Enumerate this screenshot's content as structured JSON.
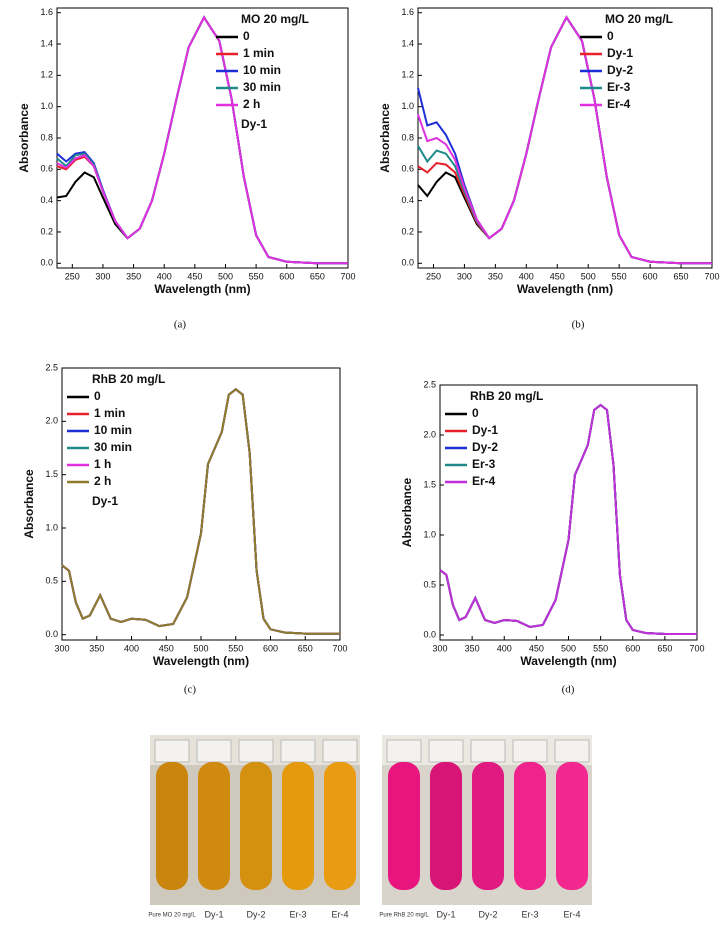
{
  "chart_data": [
    {
      "type": "line",
      "caption": "(a)",
      "xlabel": "Wavelength (nm)",
      "ylabel": "Absorbance",
      "legend": "upper right",
      "legend_title": "MO 20 mg/L",
      "annotation": "Dy-1",
      "xlim": [
        225,
        700
      ],
      "xticks": [
        250,
        300,
        350,
        400,
        450,
        500,
        550,
        600,
        650,
        700
      ],
      "ylim": [
        -0.03,
        1.63
      ],
      "yticks": [
        {
          "value": 0,
          "label": "0.0"
        },
        0.2,
        0.4,
        0.6,
        0.8,
        {
          "value": 1,
          "label": "1.0"
        },
        1.2,
        1.4,
        1.6
      ],
      "x": [
        225,
        240,
        255,
        270,
        285,
        300,
        320,
        340,
        360,
        380,
        400,
        420,
        440,
        465,
        490,
        510,
        530,
        550,
        570,
        600,
        650,
        700
      ],
      "series": [
        {
          "name": "0",
          "color": "#000000",
          "values": [
            0.42,
            0.43,
            0.52,
            0.58,
            0.55,
            0.42,
            0.25,
            0.16,
            0.22,
            0.4,
            0.7,
            1.05,
            1.38,
            1.57,
            1.42,
            1.05,
            0.55,
            0.18,
            0.04,
            0.01,
            0.0,
            0.0
          ]
        },
        {
          "name": "1 min",
          "color": "#e8202a",
          "values": [
            0.62,
            0.6,
            0.66,
            0.68,
            0.62,
            0.46,
            0.27,
            0.16,
            0.22,
            0.4,
            0.7,
            1.05,
            1.38,
            1.57,
            1.42,
            1.05,
            0.55,
            0.18,
            0.04,
            0.01,
            0.0,
            0.0
          ]
        },
        {
          "name": "10 min",
          "color": "#1f2fd8",
          "values": [
            0.7,
            0.65,
            0.7,
            0.71,
            0.64,
            0.47,
            0.27,
            0.16,
            0.22,
            0.4,
            0.7,
            1.05,
            1.38,
            1.57,
            1.42,
            1.05,
            0.55,
            0.18,
            0.04,
            0.01,
            0.0,
            0.0
          ]
        },
        {
          "name": "30 min",
          "color": "#1e8a8a",
          "values": [
            0.67,
            0.62,
            0.69,
            0.7,
            0.63,
            0.46,
            0.27,
            0.16,
            0.22,
            0.4,
            0.7,
            1.05,
            1.38,
            1.57,
            1.42,
            1.05,
            0.55,
            0.18,
            0.04,
            0.01,
            0.0,
            0.0
          ]
        },
        {
          "name": "2 h",
          "color": "#e030e0",
          "values": [
            0.64,
            0.61,
            0.67,
            0.69,
            0.62,
            0.46,
            0.27,
            0.16,
            0.22,
            0.4,
            0.7,
            1.05,
            1.38,
            1.57,
            1.42,
            1.05,
            0.55,
            0.18,
            0.04,
            0.01,
            0.0,
            0.0
          ]
        }
      ]
    },
    {
      "type": "line",
      "caption": "(b)",
      "xlabel": "Wavelength (nm)",
      "ylabel": "Absorbance",
      "legend": "upper right",
      "legend_title": "MO 20 mg/L",
      "xlim": [
        225,
        700
      ],
      "xticks": [
        250,
        300,
        350,
        400,
        450,
        500,
        550,
        600,
        650,
        700
      ],
      "ylim": [
        -0.03,
        1.63
      ],
      "yticks": [
        {
          "value": 0,
          "label": "0.0"
        },
        0.2,
        0.4,
        0.6,
        0.8,
        {
          "value": 1,
          "label": "1.0"
        },
        1.2,
        1.4,
        1.6
      ],
      "x": [
        225,
        240,
        255,
        270,
        285,
        300,
        320,
        340,
        360,
        380,
        400,
        420,
        440,
        465,
        490,
        510,
        530,
        550,
        570,
        600,
        650,
        700
      ],
      "series": [
        {
          "name": "0",
          "color": "#000000",
          "values": [
            0.5,
            0.43,
            0.52,
            0.58,
            0.55,
            0.42,
            0.25,
            0.16,
            0.22,
            0.4,
            0.7,
            1.05,
            1.38,
            1.57,
            1.42,
            1.05,
            0.55,
            0.18,
            0.04,
            0.01,
            0.0,
            0.0
          ]
        },
        {
          "name": "Dy-1",
          "color": "#e8202a",
          "values": [
            0.62,
            0.58,
            0.64,
            0.63,
            0.58,
            0.44,
            0.26,
            0.16,
            0.22,
            0.4,
            0.7,
            1.05,
            1.38,
            1.57,
            1.42,
            1.05,
            0.55,
            0.18,
            0.04,
            0.01,
            0.0,
            0.0
          ]
        },
        {
          "name": "Dy-2",
          "color": "#1f2fd8",
          "values": [
            1.12,
            0.88,
            0.9,
            0.82,
            0.7,
            0.5,
            0.28,
            0.16,
            0.22,
            0.4,
            0.7,
            1.05,
            1.38,
            1.57,
            1.42,
            1.05,
            0.55,
            0.18,
            0.04,
            0.01,
            0.0,
            0.0
          ]
        },
        {
          "name": "Er-3",
          "color": "#1e8a8a",
          "values": [
            0.75,
            0.65,
            0.72,
            0.7,
            0.62,
            0.46,
            0.27,
            0.16,
            0.22,
            0.4,
            0.7,
            1.05,
            1.38,
            1.57,
            1.42,
            1.05,
            0.55,
            0.18,
            0.04,
            0.01,
            0.0,
            0.0
          ]
        },
        {
          "name": "Er-4",
          "color": "#e030e0",
          "values": [
            0.95,
            0.78,
            0.8,
            0.76,
            0.66,
            0.48,
            0.28,
            0.16,
            0.22,
            0.4,
            0.7,
            1.05,
            1.38,
            1.57,
            1.42,
            1.05,
            0.55,
            0.18,
            0.04,
            0.01,
            0.0,
            0.0
          ]
        }
      ]
    },
    {
      "type": "line",
      "caption": "(c)",
      "xlabel": "Wavelength (nm)",
      "ylabel": "Absorbance",
      "legend": "upper left",
      "legend_title": "RhB 20 mg/L",
      "annotation": "Dy-1",
      "xlim": [
        300,
        700
      ],
      "xticks": [
        300,
        350,
        400,
        450,
        500,
        550,
        600,
        650,
        700
      ],
      "ylim": [
        -0.05,
        2.5
      ],
      "yticks": [
        {
          "value": 0,
          "label": "0.0"
        },
        0.5,
        {
          "value": 1,
          "label": "1.0"
        },
        1.5,
        {
          "value": 2,
          "label": "2.0"
        },
        2.5
      ],
      "x": [
        300,
        310,
        320,
        330,
        340,
        355,
        370,
        385,
        400,
        420,
        440,
        460,
        480,
        500,
        510,
        520,
        530,
        540,
        550,
        560,
        570,
        580,
        590,
        600,
        620,
        650,
        700
      ],
      "series": [
        {
          "name": "0",
          "color": "#000000",
          "values": [
            0.65,
            0.6,
            0.3,
            0.15,
            0.18,
            0.37,
            0.15,
            0.12,
            0.15,
            0.14,
            0.08,
            0.1,
            0.35,
            0.95,
            1.6,
            1.75,
            1.9,
            2.25,
            2.3,
            2.25,
            1.7,
            0.6,
            0.15,
            0.05,
            0.02,
            0.01,
            0.01
          ]
        },
        {
          "name": "1 min",
          "color": "#e8202a",
          "values": [
            0.65,
            0.6,
            0.3,
            0.15,
            0.18,
            0.37,
            0.15,
            0.12,
            0.15,
            0.14,
            0.08,
            0.1,
            0.35,
            0.95,
            1.6,
            1.75,
            1.9,
            2.25,
            2.3,
            2.25,
            1.7,
            0.6,
            0.15,
            0.05,
            0.02,
            0.01,
            0.01
          ]
        },
        {
          "name": "10 min",
          "color": "#1f2fd8",
          "values": [
            0.65,
            0.6,
            0.3,
            0.15,
            0.18,
            0.37,
            0.15,
            0.12,
            0.15,
            0.14,
            0.08,
            0.1,
            0.35,
            0.95,
            1.6,
            1.75,
            1.9,
            2.25,
            2.3,
            2.25,
            1.7,
            0.6,
            0.15,
            0.05,
            0.02,
            0.01,
            0.01
          ]
        },
        {
          "name": "30 min",
          "color": "#1e8a8a",
          "values": [
            0.65,
            0.6,
            0.3,
            0.15,
            0.18,
            0.37,
            0.15,
            0.12,
            0.15,
            0.14,
            0.08,
            0.1,
            0.35,
            0.95,
            1.6,
            1.75,
            1.9,
            2.25,
            2.3,
            2.25,
            1.7,
            0.6,
            0.15,
            0.05,
            0.02,
            0.01,
            0.01
          ]
        },
        {
          "name": "1 h",
          "color": "#e030e0",
          "values": [
            0.65,
            0.6,
            0.3,
            0.15,
            0.18,
            0.37,
            0.15,
            0.12,
            0.15,
            0.14,
            0.08,
            0.1,
            0.35,
            0.95,
            1.6,
            1.75,
            1.9,
            2.25,
            2.3,
            2.25,
            1.7,
            0.6,
            0.15,
            0.05,
            0.02,
            0.01,
            0.01
          ]
        },
        {
          "name": "2 h",
          "color": "#8b7d2a",
          "values": [
            0.65,
            0.6,
            0.3,
            0.15,
            0.18,
            0.37,
            0.15,
            0.12,
            0.15,
            0.14,
            0.08,
            0.1,
            0.35,
            0.95,
            1.6,
            1.75,
            1.9,
            2.25,
            2.3,
            2.25,
            1.7,
            0.6,
            0.15,
            0.05,
            0.02,
            0.01,
            0.01
          ]
        }
      ]
    },
    {
      "type": "line",
      "caption": "(d)",
      "xlabel": "Wavelength (nm)",
      "ylabel": "Absorbance",
      "legend": "upper left",
      "legend_title": "RhB 20 mg/L",
      "xlim": [
        300,
        700
      ],
      "xticks": [
        300,
        350,
        400,
        450,
        500,
        550,
        600,
        650,
        700
      ],
      "ylim": [
        -0.05,
        2.5
      ],
      "yticks": [
        {
          "value": 0,
          "label": "0.0"
        },
        0.5,
        {
          "value": 1,
          "label": "1.0"
        },
        1.5,
        {
          "value": 2,
          "label": "2.0"
        },
        2.5
      ],
      "x": [
        300,
        310,
        320,
        330,
        340,
        355,
        370,
        385,
        400,
        420,
        440,
        460,
        480,
        500,
        510,
        520,
        530,
        540,
        550,
        560,
        570,
        580,
        590,
        600,
        620,
        650,
        700
      ],
      "series": [
        {
          "name": "0",
          "color": "#000000",
          "values": [
            0.65,
            0.6,
            0.3,
            0.15,
            0.18,
            0.37,
            0.15,
            0.12,
            0.15,
            0.14,
            0.08,
            0.1,
            0.35,
            0.95,
            1.6,
            1.75,
            1.9,
            2.25,
            2.3,
            2.25,
            1.7,
            0.6,
            0.15,
            0.05,
            0.02,
            0.01,
            0.01
          ]
        },
        {
          "name": "Dy-1",
          "color": "#e8202a",
          "values": [
            0.65,
            0.6,
            0.3,
            0.15,
            0.18,
            0.37,
            0.15,
            0.12,
            0.15,
            0.14,
            0.08,
            0.1,
            0.35,
            0.95,
            1.6,
            1.75,
            1.9,
            2.25,
            2.3,
            2.25,
            1.7,
            0.6,
            0.15,
            0.05,
            0.02,
            0.01,
            0.01
          ]
        },
        {
          "name": "Dy-2",
          "color": "#1f2fd8",
          "values": [
            0.65,
            0.6,
            0.3,
            0.15,
            0.18,
            0.37,
            0.15,
            0.12,
            0.15,
            0.14,
            0.08,
            0.1,
            0.35,
            0.95,
            1.6,
            1.75,
            1.9,
            2.25,
            2.3,
            2.25,
            1.7,
            0.6,
            0.15,
            0.05,
            0.02,
            0.01,
            0.01
          ]
        },
        {
          "name": "Er-3",
          "color": "#1e8a8a",
          "values": [
            0.65,
            0.6,
            0.3,
            0.15,
            0.18,
            0.37,
            0.15,
            0.12,
            0.15,
            0.14,
            0.08,
            0.1,
            0.35,
            0.95,
            1.6,
            1.75,
            1.9,
            2.25,
            2.3,
            2.25,
            1.7,
            0.6,
            0.15,
            0.05,
            0.02,
            0.01,
            0.01
          ]
        },
        {
          "name": "Er-4",
          "color": "#c030d8",
          "values": [
            0.65,
            0.6,
            0.3,
            0.15,
            0.18,
            0.37,
            0.15,
            0.12,
            0.15,
            0.14,
            0.08,
            0.1,
            0.35,
            0.95,
            1.6,
            1.75,
            1.9,
            2.25,
            2.3,
            2.25,
            1.7,
            0.6,
            0.15,
            0.05,
            0.02,
            0.01,
            0.01
          ]
        }
      ]
    }
  ],
  "photos": [
    {
      "labels": [
        "Pure MO 20 mg/L",
        "Dy-1",
        "Dy-2",
        "Er-3",
        "Er-4"
      ]
    },
    {
      "labels": [
        "Pure RhB 20 mg/L",
        "Dy-1",
        "Dy-2",
        "Er-3",
        "Er-4"
      ]
    }
  ]
}
